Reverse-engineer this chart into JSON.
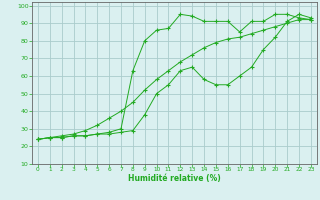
{
  "xlabel": "Humidité relative (%)",
  "bg_color": "#daf0f0",
  "grid_color": "#aacccc",
  "line_color": "#22aa22",
  "spine_color": "#666666",
  "xlim": [
    -0.5,
    23.5
  ],
  "ylim": [
    10,
    102
  ],
  "yticks": [
    10,
    20,
    30,
    40,
    50,
    60,
    70,
    80,
    90,
    100
  ],
  "xticks": [
    0,
    1,
    2,
    3,
    4,
    5,
    6,
    7,
    8,
    9,
    10,
    11,
    12,
    13,
    14,
    15,
    16,
    17,
    18,
    19,
    20,
    21,
    22,
    23
  ],
  "line1_x": [
    0,
    1,
    2,
    3,
    4,
    5,
    6,
    7,
    8,
    9,
    10,
    11,
    12,
    13,
    14,
    15,
    16,
    17,
    18,
    19,
    20,
    21,
    22,
    23
  ],
  "line1_y": [
    24,
    25,
    25,
    26,
    26,
    27,
    27,
    28,
    29,
    38,
    50,
    55,
    63,
    65,
    58,
    55,
    55,
    60,
    65,
    75,
    82,
    91,
    95,
    93
  ],
  "line2_x": [
    0,
    1,
    2,
    3,
    4,
    5,
    6,
    7,
    8,
    9,
    10,
    11,
    12,
    13,
    14,
    15,
    16,
    17,
    18,
    19,
    20,
    21,
    22,
    23
  ],
  "line2_y": [
    24,
    25,
    25,
    26,
    26,
    27,
    28,
    30,
    63,
    80,
    86,
    87,
    95,
    94,
    91,
    91,
    91,
    85,
    91,
    91,
    95,
    95,
    93,
    92
  ],
  "line3_x": [
    0,
    1,
    2,
    3,
    4,
    5,
    6,
    7,
    8,
    9,
    10,
    11,
    12,
    13,
    14,
    15,
    16,
    17,
    18,
    19,
    20,
    21,
    22,
    23
  ],
  "line3_y": [
    24,
    25,
    26,
    27,
    29,
    32,
    36,
    40,
    45,
    52,
    58,
    63,
    68,
    72,
    76,
    79,
    81,
    82,
    84,
    86,
    88,
    90,
    92,
    92
  ]
}
